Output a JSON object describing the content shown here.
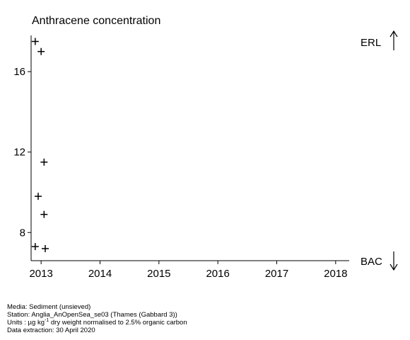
{
  "chart_data": {
    "type": "scatter",
    "title": "Anthracene concentration",
    "xlabel": "",
    "ylabel": "",
    "xlim": [
      2012.83,
      2018.23
    ],
    "ylim": [
      6.6,
      17.8
    ],
    "x_ticks": [
      2013,
      2014,
      2015,
      2016,
      2017,
      2018
    ],
    "x_tick_labels": [
      "2013",
      "2014",
      "2015",
      "2016",
      "2017",
      "2018"
    ],
    "y_ticks": [
      8,
      12,
      16
    ],
    "y_tick_labels": [
      "8",
      "12",
      "16"
    ],
    "marker": "+",
    "points": [
      {
        "x": 2012.9,
        "y": 17.5
      },
      {
        "x": 2013.0,
        "y": 17.0
      },
      {
        "x": 2013.05,
        "y": 11.5
      },
      {
        "x": 2012.95,
        "y": 9.8
      },
      {
        "x": 2013.05,
        "y": 8.9
      },
      {
        "x": 2012.9,
        "y": 7.3
      },
      {
        "x": 2013.07,
        "y": 7.2
      }
    ],
    "reference_levels": [
      {
        "label": "ERL",
        "direction": "up"
      },
      {
        "label": "BAC",
        "direction": "down"
      }
    ],
    "grid": false
  },
  "footer": {
    "media": "Media: Sediment (unsieved)",
    "station": "Station: Anglia_AnOpenSea_se03 (Thames (Gabbard 3))",
    "units_prefix": "Units : µg kg",
    "units_sup": "-1",
    "units_suffix": " dry weight normalised to 2.5% organic carbon",
    "extraction": "Data extraction: 30 April 2020"
  }
}
